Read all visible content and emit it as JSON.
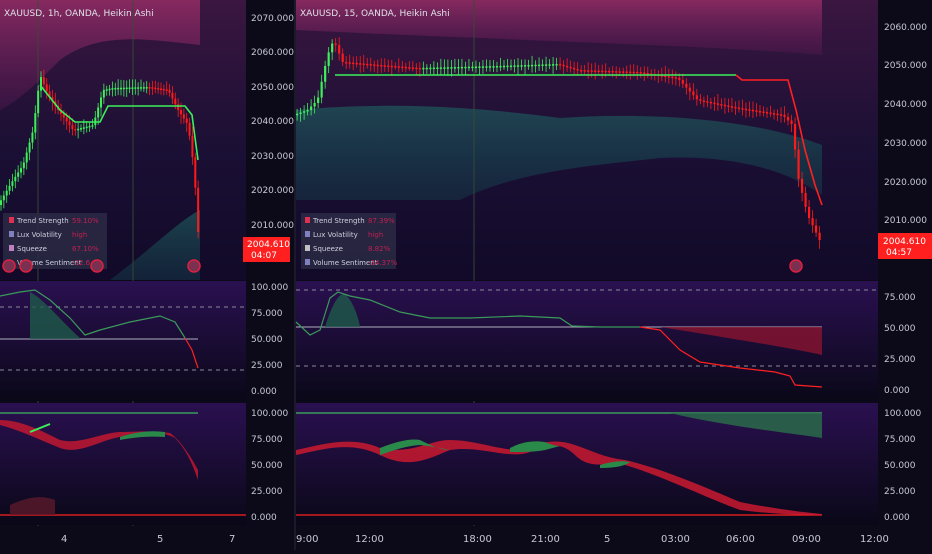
{
  "left_chart": {
    "title": "XAUUSD, 1h, OANDA, Heikin Ashi",
    "price_axis": [
      "2070.000",
      "2060.000",
      "2050.000",
      "2040.000",
      "2030.000",
      "2020.000",
      "2010.000"
    ],
    "price_badge": "2004.610",
    "price_badge_time": "04:07",
    "osc1_axis": [
      "100.000",
      "75.000",
      "50.000",
      "25.000",
      "0.000"
    ],
    "osc2_axis": [
      "100.000",
      "75.000",
      "50.000",
      "25.000",
      "0.000"
    ],
    "time_axis": [
      "4",
      "5",
      "7"
    ],
    "dashboard": [
      {
        "label": "Trend Strength",
        "value": "59.10%"
      },
      {
        "label": "Lux Volatility",
        "value": "high"
      },
      {
        "label": "Squeeze",
        "value": "67.10%"
      },
      {
        "label": "Volume Sentiment",
        "value": "-32.6"
      }
    ]
  },
  "right_chart": {
    "title": "XAUUSD, 15, OANDA, Heikin Ashi",
    "price_axis": [
      "2060.000",
      "2050.000",
      "2040.000",
      "2030.000",
      "2020.000",
      "2010.000"
    ],
    "price_badge": "2004.610",
    "price_badge_time": "04:57",
    "osc1_axis": [
      "75.000",
      "50.000",
      "25.000",
      "0.000"
    ],
    "osc2_axis": [
      "100.000",
      "75.000",
      "50.000",
      "25.000",
      "0.000"
    ],
    "time_axis": [
      "9:00",
      "12:00",
      "18:00",
      "21:00",
      "5",
      "03:00",
      "06:00",
      "09:00",
      "12:00"
    ],
    "dashboard": [
      {
        "label": "Trend Strength",
        "value": "87.39%"
      },
      {
        "label": "Lux Volatility",
        "value": "high"
      },
      {
        "label": "Squeeze",
        "value": "8.82%"
      },
      {
        "label": "Volume Sentiment",
        "value": "-34.37%"
      }
    ]
  },
  "colors": {
    "bull": "#3cf05a",
    "bear": "#ff1a1a",
    "background": "#0c0a18",
    "badge": "#ff1f1f"
  }
}
